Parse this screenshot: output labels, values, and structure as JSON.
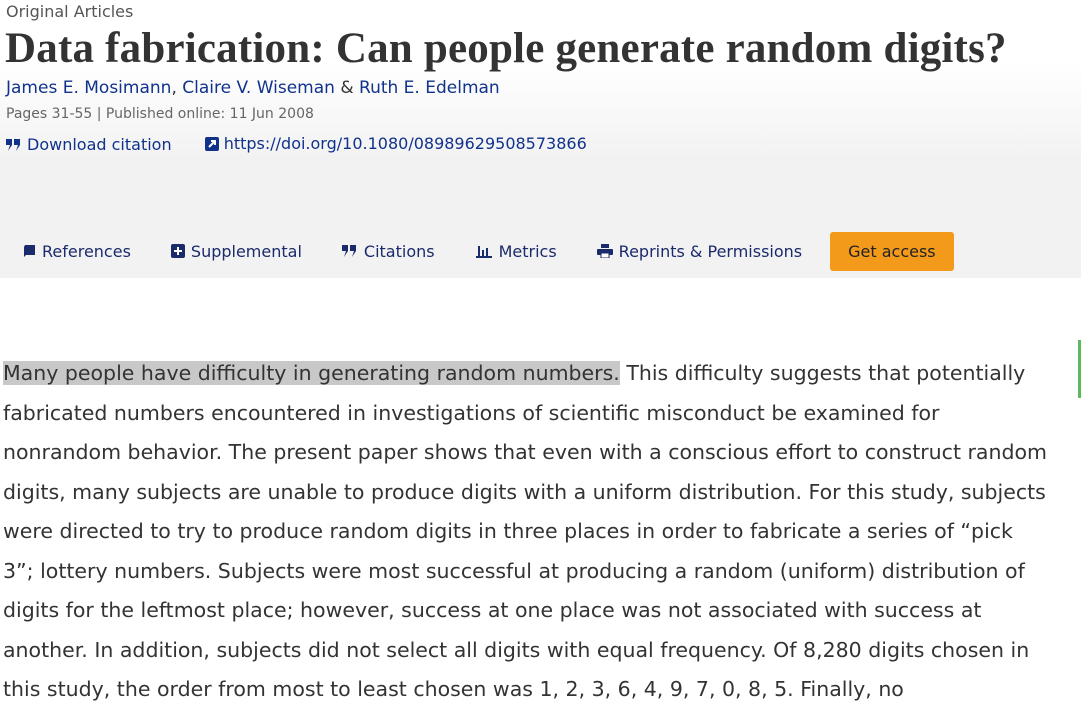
{
  "header": {
    "section": "Original Articles",
    "title": "Data fabrication: Can people generate random digits?",
    "authors": [
      "James E. Mosimann",
      "Claire V. Wiseman",
      "Ruth E. Edelman"
    ],
    "author_separators": [
      ",",
      "&"
    ],
    "meta": "Pages 31-55 | Published online: 11 Jun 2008",
    "download_citation": "Download citation",
    "doi": "https://doi.org/10.1080/08989629508573866"
  },
  "nav": {
    "tabs": [
      "References",
      "Supplemental",
      "Citations",
      "Metrics",
      "Reprints & Permissions"
    ],
    "button": "Get access"
  },
  "abstract": {
    "highlighted": "Many people have difficulty in generating random numbers.",
    "rest": "This difficulty suggests that potentially fabricated numbers encountered in investigations of scientific misconduct be examined for nonrandom behavior. The present paper shows that even with a conscious effort to construct random digits, many subjects are unable to produce digits with a uniform distribution. For this study, subjects were directed to try to produce random digits in three places in order to fabricate a series of “pick 3”; lottery numbers. Subjects were most successful at producing a random (uniform) distribution of digits for the leftmost place; however, success at one place was not associated with success at another. In addition, subjects did not select all digits with equal frequency. Of 8,280 digits chosen in this study, the order from most to least chosen was 1, 2, 3, 6, 4, 9, 7, 0, 8, 5. Finally, no"
  }
}
